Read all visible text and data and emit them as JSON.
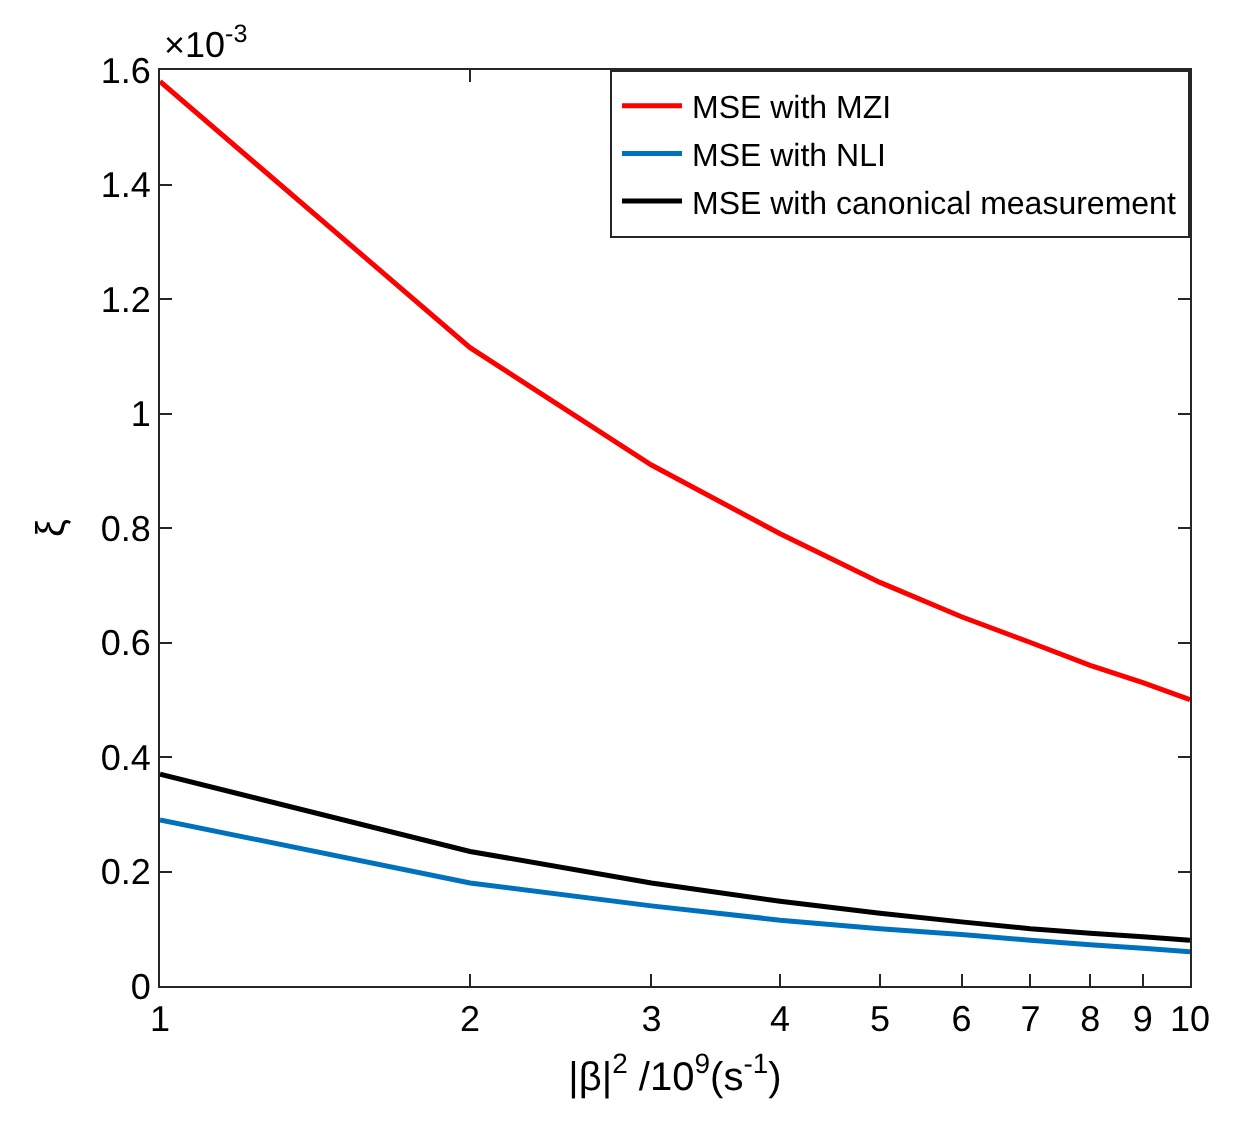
{
  "chart_data": {
    "type": "line",
    "xlabel": "|β|$^{2}$ /10$^{9}$(s$^{-1}$)",
    "ylabel": "ξ",
    "annotations": [
      "×10$^{-3}$"
    ],
    "x": [
      1,
      2,
      3,
      4,
      5,
      6,
      7,
      8,
      9,
      10
    ],
    "series": [
      {
        "name": "MSE with MZI",
        "color": "#ff0000",
        "values": [
          1.58,
          1.115,
          0.91,
          0.79,
          0.705,
          0.645,
          0.6,
          0.56,
          0.53,
          0.5
        ]
      },
      {
        "name": "MSE with NLI",
        "color": "#0072bd",
        "values": [
          0.29,
          0.18,
          0.14,
          0.115,
          0.1,
          0.09,
          0.08,
          0.072,
          0.066,
          0.06
        ]
      },
      {
        "name": "MSE with canonical measurement",
        "color": "#000000",
        "values": [
          0.37,
          0.235,
          0.18,
          0.148,
          0.127,
          0.112,
          0.1,
          0.092,
          0.086,
          0.08
        ]
      }
    ],
    "log": "x",
    "xlim": [
      1,
      10
    ],
    "xticks": [
      1,
      2,
      3,
      4,
      5,
      6,
      7,
      8,
      9,
      10
    ],
    "ylim": [
      0,
      1.6
    ],
    "yticks": [
      0,
      0.2,
      0.4,
      0.6,
      0.8,
      1,
      1.2,
      1.4,
      1.6
    ],
    "grid": false,
    "legend": "top right",
    "marker": "none",
    "line_style": "solid"
  }
}
